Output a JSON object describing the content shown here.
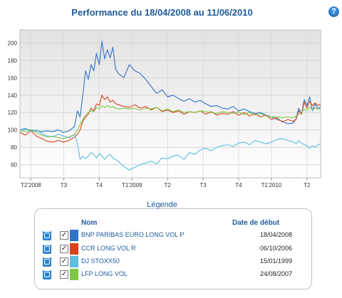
{
  "header": {
    "title": "Performance du 18/04/2008 au 11/06/2010",
    "help_label": "?"
  },
  "legend": {
    "title": "Légende",
    "col_name": "Nom",
    "col_date": "Date de début",
    "items": [
      {
        "name": "BNP PARIBAS EURO LONG VOL P",
        "date": "18/04/2008",
        "color": "#2f73c9"
      },
      {
        "name": "CCR LONG VOL R",
        "date": "06/10/2006",
        "color": "#d9431e"
      },
      {
        "name": "DJ STOXX50",
        "date": "15/01/1999",
        "color": "#5bbde0"
      },
      {
        "name": "LFP LONG VOL",
        "date": "24/08/2007",
        "color": "#7ec846"
      }
    ]
  },
  "chart_data": {
    "type": "line",
    "title": "Performance du 18/04/2008 au 11/06/2010",
    "ylim": [
      45,
      215
    ],
    "yticks": [
      60,
      80,
      100,
      120,
      140,
      160,
      180,
      200
    ],
    "grid": true,
    "xticks": [
      {
        "x": 4,
        "label": "T2'2008"
      },
      {
        "x": 16,
        "label": "T3"
      },
      {
        "x": 29,
        "label": "T4"
      },
      {
        "x": 41,
        "label": "T1'2009"
      },
      {
        "x": 54,
        "label": "T2"
      },
      {
        "x": 67,
        "label": "T3"
      },
      {
        "x": 80,
        "label": "T4"
      },
      {
        "x": 92,
        "label": "T1'2010"
      },
      {
        "x": 105,
        "label": "T2"
      }
    ],
    "series": [
      {
        "name": "BNP PARIBAS EURO LONG VOL P",
        "color": "#2f73c9",
        "x": [
          0,
          2,
          4,
          6,
          8,
          10,
          12,
          14,
          16,
          18,
          20,
          21,
          22,
          23,
          24,
          25,
          26,
          27,
          28,
          29,
          30,
          31,
          32,
          33,
          34,
          35,
          36,
          38,
          40,
          42,
          44,
          46,
          48,
          50,
          52,
          54,
          56,
          58,
          60,
          62,
          64,
          66,
          68,
          70,
          72,
          74,
          76,
          78,
          80,
          82,
          84,
          86,
          88,
          90,
          92,
          94,
          96,
          98,
          100,
          101,
          102,
          103,
          104,
          105,
          106,
          107,
          108,
          109,
          110
        ],
        "values": [
          100,
          101,
          100,
          99,
          98,
          99,
          98,
          100,
          97,
          99,
          104,
          122,
          115,
          140,
          168,
          158,
          175,
          168,
          188,
          175,
          202,
          182,
          192,
          183,
          195,
          170,
          165,
          160,
          175,
          168,
          165,
          158,
          150,
          142,
          146,
          138,
          140,
          136,
          133,
          136,
          132,
          134,
          130,
          127,
          128,
          125,
          124,
          127,
          122,
          124,
          121,
          119,
          120,
          117,
          115,
          112,
          110,
          107,
          108,
          113,
          125,
          118,
          135,
          128,
          138,
          122,
          130,
          124,
          127
        ]
      },
      {
        "name": "CCR LONG VOL R",
        "color": "#d9431e",
        "x": [
          0,
          2,
          4,
          6,
          8,
          10,
          12,
          14,
          16,
          18,
          20,
          21,
          22,
          23,
          24,
          25,
          26,
          27,
          28,
          29,
          30,
          31,
          32,
          33,
          34,
          35,
          36,
          38,
          40,
          42,
          44,
          46,
          48,
          50,
          52,
          54,
          56,
          58,
          60,
          62,
          64,
          66,
          68,
          70,
          72,
          74,
          76,
          78,
          80,
          82,
          84,
          86,
          88,
          90,
          92,
          94,
          96,
          98,
          100,
          101,
          102,
          103,
          104,
          105,
          106,
          107,
          108,
          109,
          110
        ],
        "values": [
          97,
          94,
          99,
          93,
          90,
          87,
          86,
          88,
          86,
          88,
          92,
          95,
          100,
          110,
          115,
          118,
          125,
          122,
          130,
          128,
          140,
          135,
          138,
          132,
          134,
          130,
          129,
          127,
          126,
          129,
          125,
          127,
          123,
          126,
          121,
          123,
          120,
          122,
          118,
          121,
          120,
          122,
          118,
          121,
          117,
          119,
          118,
          121,
          117,
          120,
          116,
          119,
          115,
          117,
          112,
          114,
          109,
          112,
          110,
          112,
          122,
          118,
          132,
          125,
          133,
          128,
          131,
          128,
          130
        ]
      },
      {
        "name": "DJ STOXX50",
        "color": "#5bbde0",
        "x": [
          0,
          2,
          4,
          6,
          8,
          10,
          12,
          14,
          16,
          18,
          20,
          21,
          22,
          23,
          24,
          25,
          26,
          27,
          28,
          29,
          30,
          31,
          32,
          33,
          34,
          35,
          36,
          38,
          40,
          42,
          44,
          46,
          48,
          50,
          52,
          54,
          56,
          58,
          60,
          62,
          64,
          66,
          68,
          70,
          72,
          74,
          76,
          78,
          80,
          82,
          84,
          86,
          88,
          90,
          92,
          94,
          96,
          98,
          100,
          101,
          102,
          103,
          104,
          105,
          106,
          107,
          108,
          109,
          110
        ],
        "values": [
          100,
          102,
          98,
          100,
          96,
          93,
          92,
          95,
          93,
          91,
          95,
          85,
          66,
          70,
          67,
          70,
          74,
          72,
          68,
          73,
          70,
          66,
          70,
          72,
          68,
          66,
          64,
          58,
          54,
          57,
          60,
          62,
          64,
          61,
          68,
          67,
          70,
          71,
          66,
          74,
          72,
          77,
          79,
          76,
          80,
          82,
          83,
          81,
          85,
          86,
          83,
          88,
          86,
          84,
          86,
          89,
          90,
          88,
          86,
          84,
          88,
          85,
          83,
          82,
          79,
          82,
          80,
          83,
          84
        ]
      },
      {
        "name": "LFP LONG VOL",
        "color": "#7ec846",
        "x": [
          0,
          2,
          4,
          6,
          8,
          10,
          12,
          14,
          16,
          18,
          20,
          21,
          22,
          23,
          24,
          25,
          26,
          27,
          28,
          29,
          30,
          31,
          32,
          33,
          34,
          35,
          36,
          38,
          40,
          42,
          44,
          46,
          48,
          50,
          52,
          54,
          56,
          58,
          60,
          62,
          64,
          66,
          68,
          70,
          72,
          74,
          76,
          78,
          80,
          82,
          84,
          86,
          88,
          90,
          92,
          94,
          96,
          98,
          100,
          101,
          102,
          103,
          104,
          105,
          106,
          107,
          108,
          109,
          110
        ],
        "values": [
          99,
          98,
          100,
          97,
          94,
          92,
          93,
          91,
          90,
          92,
          95,
          100,
          106,
          112,
          117,
          120,
          122,
          121,
          126,
          124,
          128,
          126,
          128,
          126,
          127,
          125,
          124,
          125,
          124,
          125,
          123,
          125,
          124,
          126,
          122,
          124,
          121,
          123,
          120,
          121,
          120,
          122,
          121,
          120,
          119,
          121,
          120,
          119,
          121,
          118,
          120,
          117,
          119,
          116,
          115,
          115,
          114,
          115,
          114,
          116,
          118,
          120,
          124,
          122,
          126,
          123,
          125,
          124,
          125
        ]
      }
    ]
  }
}
